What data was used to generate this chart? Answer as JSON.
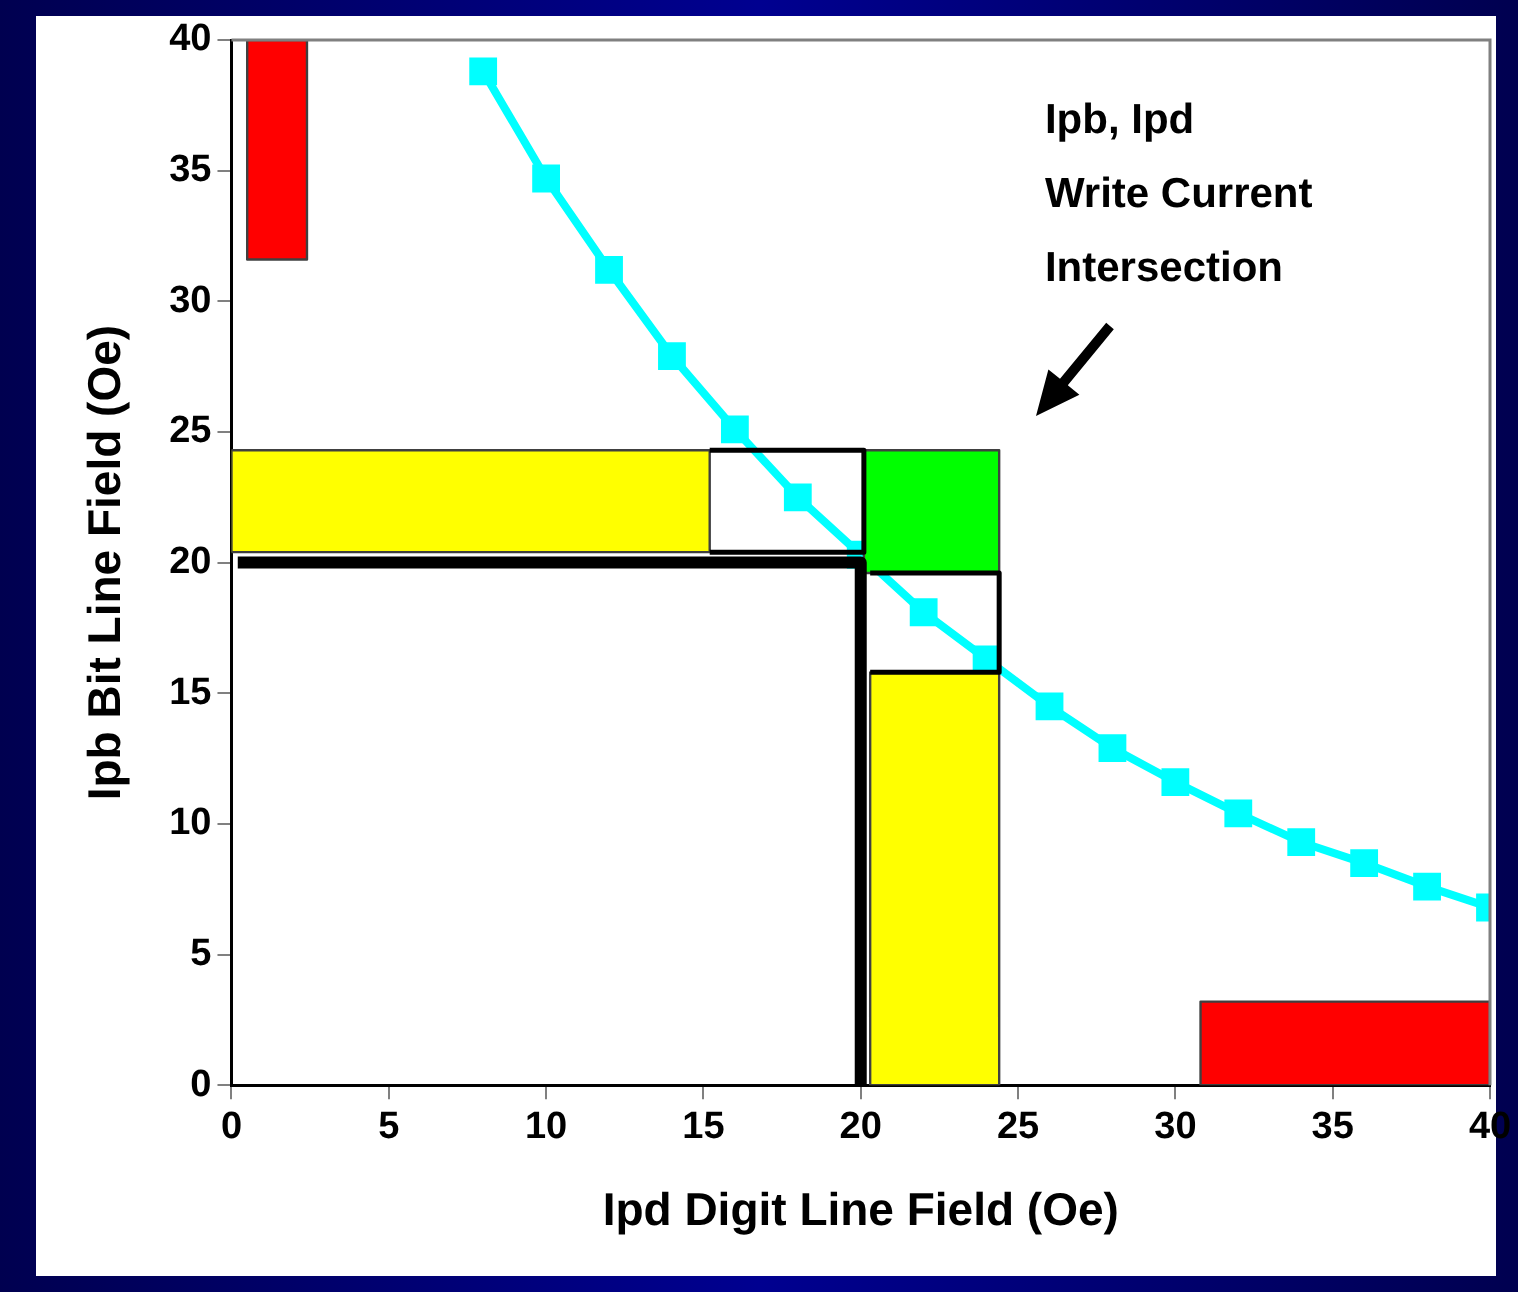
{
  "chart_data": {
    "type": "line",
    "xlabel": "Ipd Digit Line Field (Oe)",
    "ylabel": "Ipb Bit Line Field (Oe)",
    "xlim": [
      0,
      40
    ],
    "ylim": [
      0,
      40
    ],
    "xticks": [
      0,
      5,
      10,
      15,
      20,
      25,
      30,
      35,
      40
    ],
    "yticks": [
      0,
      5,
      10,
      15,
      20,
      25,
      30,
      35,
      40
    ],
    "grid": false,
    "legend": false,
    "annotations": [
      "Ipb, Ipd\nWrite Current\nIntersection"
    ],
    "series": [
      {
        "type": "area",
        "color": "#ff0000",
        "x": [
          0.5,
          2.4,
          2.4,
          0.5,
          0.5
        ],
        "values": [
          31.6,
          31.6,
          40,
          40,
          31.6
        ]
      },
      {
        "type": "area",
        "color": "#ff0000",
        "x": [
          30.8,
          40,
          40,
          30.8,
          30.8
        ],
        "values": [
          0,
          0,
          3.2,
          3.2,
          0
        ]
      },
      {
        "type": "area",
        "color": "#ffff00",
        "x": [
          0,
          15.2,
          15.2,
          0,
          0
        ],
        "values": [
          20.4,
          20.4,
          24.3,
          24.3,
          20.4
        ]
      },
      {
        "type": "area",
        "color": "#ffff00",
        "x": [
          20.3,
          24.4,
          24.4,
          20.3,
          20.3
        ],
        "values": [
          0,
          0,
          15.8,
          15.8,
          0
        ]
      },
      {
        "type": "line",
        "color": "#00ffff",
        "marker": "square",
        "x": [
          8,
          10,
          12,
          14,
          16,
          18,
          20,
          22,
          24,
          26,
          28,
          30,
          32,
          34,
          36,
          38,
          40
        ],
        "values": [
          38.8,
          34.7,
          31.2,
          27.9,
          25.1,
          22.5,
          20.3,
          18.1,
          16.3,
          14.5,
          12.9,
          11.6,
          10.4,
          9.3,
          8.5,
          7.6,
          6.8
        ]
      },
      {
        "type": "area",
        "color": "#00ff00",
        "x": [
          20.1,
          24.4,
          24.4,
          20.1,
          20.1
        ],
        "values": [
          19.6,
          19.6,
          24.3,
          24.3,
          19.6
        ]
      },
      {
        "type": "line",
        "color": "#000000",
        "marker": "none",
        "x": [
          0.2,
          20,
          20
        ],
        "values": [
          20,
          20,
          0
        ]
      },
      {
        "type": "line",
        "color": "#000000",
        "x": [
          15.2,
          20.1,
          20.1,
          15.2
        ],
        "values": [
          20.4,
          20.4,
          24.3,
          24.3
        ]
      },
      {
        "type": "line",
        "color": "#000000",
        "x": [
          20.3,
          24.4,
          24.4,
          20.3
        ],
        "values": [
          19.6,
          19.6,
          15.8,
          15.8
        ]
      }
    ]
  }
}
